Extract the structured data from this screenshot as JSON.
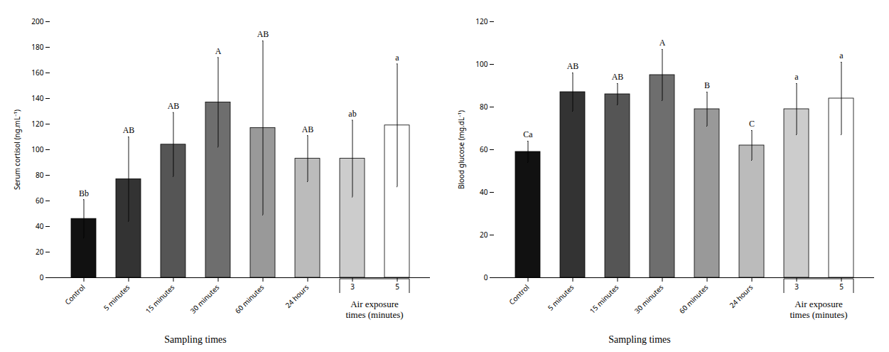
{
  "chart_data": [
    {
      "type": "bar",
      "categories": [
        "Control",
        "5 minutes",
        "15 minutes",
        "30 minutes",
        "60 minutes",
        "24 hours",
        "3",
        "5"
      ],
      "values": [
        46,
        77,
        104,
        137,
        117,
        93,
        93,
        119
      ],
      "errors": [
        15,
        33,
        25,
        35,
        68,
        18,
        30,
        48
      ],
      "sig_labels": [
        "Bb",
        "AB",
        "AB",
        "A",
        "AB",
        "AB",
        "ab",
        "a"
      ],
      "colors": [
        "#111111",
        "#333333",
        "#555555",
        "#6e6e6e",
        "#999999",
        "#bbbbbb",
        "#cccccc",
        "#ffffff"
      ],
      "ylabel": "Serum cortisol (ng.mL⁻¹)",
      "xlabel": "Sampling times",
      "annotations": [
        "Air exposure\ntimes (minutes)"
      ],
      "ylim": [
        0,
        200
      ],
      "yticks": [
        0,
        20,
        40,
        60,
        80,
        100,
        120,
        140,
        160,
        180,
        200
      ],
      "grid": false
    },
    {
      "type": "bar",
      "categories": [
        "Control",
        "5 minutes",
        "15 minutes",
        "30 minutes",
        "60 minutes",
        "24 hours",
        "3",
        "5"
      ],
      "values": [
        59,
        87,
        86,
        95,
        79,
        62,
        79,
        84
      ],
      "errors": [
        5,
        9,
        5,
        12,
        8,
        7,
        12,
        17
      ],
      "sig_labels": [
        "Ca",
        "AB",
        "AB",
        "A",
        "B",
        "C",
        "a",
        "a"
      ],
      "colors": [
        "#111111",
        "#333333",
        "#555555",
        "#6e6e6e",
        "#999999",
        "#bbbbbb",
        "#cccccc",
        "#ffffff"
      ],
      "ylabel": "Blood glucose (mg.dL⁻¹)",
      "xlabel": "Sampling times",
      "annotations": [
        "Air exposure\ntimes (minutes)"
      ],
      "ylim": [
        0,
        120
      ],
      "yticks": [
        0,
        20,
        40,
        60,
        80,
        100,
        120
      ],
      "grid": false
    }
  ]
}
